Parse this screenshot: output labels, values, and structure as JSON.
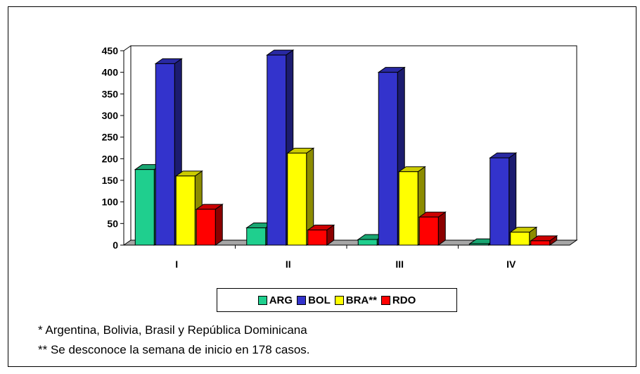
{
  "chart_data": {
    "type": "bar",
    "categories": [
      "I",
      "II",
      "III",
      "IV"
    ],
    "series": [
      {
        "name": "ARG",
        "color": "#1fcf8e",
        "values": [
          175,
          40,
          13,
          3
        ]
      },
      {
        "name": "BOL",
        "color": "#3333cc",
        "values": [
          420,
          440,
          400,
          202
        ]
      },
      {
        "name": "BRA**",
        "color": "#ffff00",
        "values": [
          160,
          213,
          170,
          30
        ]
      },
      {
        "name": "RDO",
        "color": "#ff0000",
        "values": [
          83,
          35,
          65,
          10
        ]
      }
    ],
    "yticks": [
      "0",
      "50",
      "100",
      "150",
      "200",
      "250",
      "300",
      "350",
      "400",
      "450"
    ],
    "ylim": [
      0,
      450
    ],
    "legend_position": "bottom",
    "grid": false,
    "three_d": true
  },
  "notes": [
    "* Argentina, Bolivia, Brasil y República Dominicana",
    "** Se desconoce la semana de inicio en 178 casos."
  ]
}
